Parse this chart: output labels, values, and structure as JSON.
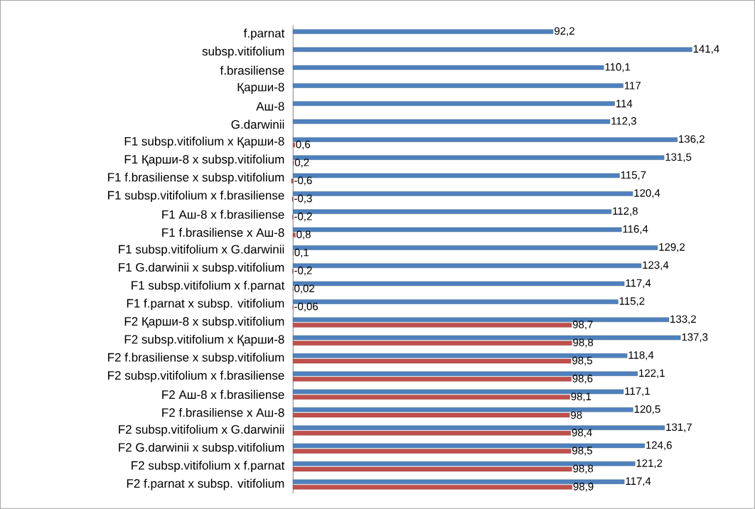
{
  "chart_data": {
    "type": "bar",
    "orientation": "horizontal",
    "data_labels": true,
    "categories": [
      "f.parnat",
      "subsp.vitifolium",
      "f.brasiliense",
      "Қарши-8",
      "Аш-8",
      "G.darwinii",
      "F1 subsp.vitifolium x Қарши-8",
      "F1 Қарши-8 x subsp.vitifolium",
      "F1 f.brasiliense x subsp.vitifolium",
      "F1 subsp.vitifolium x f.brasiliense",
      "F1 Аш-8 x f.brasiliense",
      "F1 f.brasiliense x Аш-8",
      "F1 subsp.vitifolium x G.darwinii",
      "F1 G.darwinii x subsp.vitifolium",
      "F1 subsp.vitifolium x f.parnat",
      "F1 f.parnat x subsp. vitifolium",
      "F2 Қарши-8 x subsp.vitifolium",
      "F2 subsp.vitifolium x Қарши-8",
      "F2 f.brasiliense x subsp.vitifolium",
      "F2 subsp.vitifolium x f.brasiliense",
      "F2 Аш-8 x f.brasiliense",
      "F2 f.brasiliense x Аш-8",
      "F2 subsp.vitifolium x G.darwinii",
      "F2 G.darwinii x subsp.vitifolium",
      "F2 subsp.vitifolium x f.parnat",
      "F2 f.parnat x subsp. vitifolium"
    ],
    "series": [
      {
        "color": "#4f81bd",
        "values": [
          92.2,
          141.4,
          110.1,
          117,
          114,
          112.3,
          136.2,
          131.5,
          115.7,
          120.4,
          112.8,
          116.4,
          129.2,
          123.4,
          117.4,
          115.2,
          133.2,
          137.3,
          118.4,
          122.1,
          117.1,
          120.5,
          131.7,
          124.6,
          121.2,
          117.4
        ],
        "value_labels": [
          "92,2",
          "141,4",
          "110,1",
          "117",
          "114",
          "112,3",
          "136,2",
          "131,5",
          "115,7",
          "120,4",
          "112,8",
          "116,4",
          "129,2",
          "123,4",
          "117,4",
          "115,2",
          "133,2",
          "137,3",
          "118,4",
          "122,1",
          "117,1",
          "120,5",
          "131,7",
          "124,6",
          "121,2",
          "117,4"
        ]
      },
      {
        "color": "#c0504d",
        "values": [
          null,
          null,
          null,
          null,
          null,
          null,
          0.6,
          0.2,
          -0.6,
          -0.3,
          -0.2,
          0.8,
          0.1,
          -0.2,
          0.02,
          -0.06,
          98.7,
          98.8,
          98.5,
          98.6,
          98.1,
          98,
          98.4,
          98.5,
          98.8,
          98.9
        ],
        "value_labels": [
          null,
          null,
          null,
          null,
          null,
          null,
          "0,6",
          "0,2",
          "-0,6",
          "-0,3",
          "-0,2",
          "0,8",
          "0,1",
          "-0,2",
          "0,02",
          "-0,06",
          "98,7",
          "98,8",
          "98,5",
          "98,6",
          "98,1",
          "98",
          "98,4",
          "98,5",
          "98,8",
          "98,9"
        ]
      }
    ]
  }
}
